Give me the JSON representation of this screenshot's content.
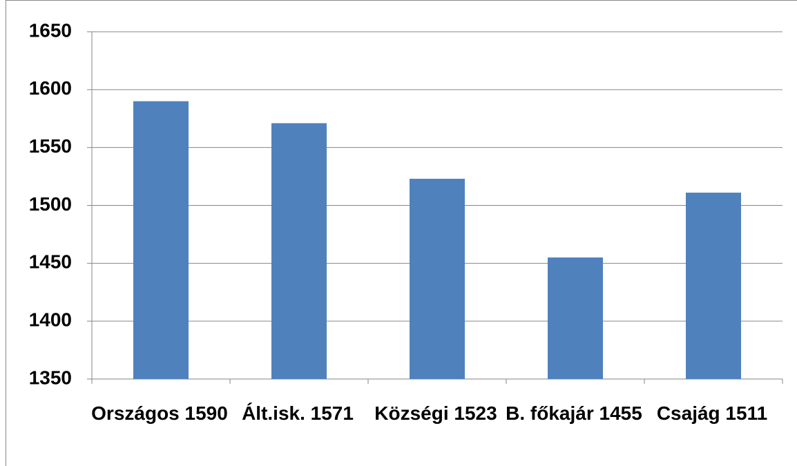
{
  "chart_data": {
    "type": "bar",
    "categories": [
      "Országos 1590",
      "Ált.isk. 1571",
      "Községi 1523",
      "B. főkajár 1455",
      "Csajág 1511"
    ],
    "values": [
      1590,
      1571,
      1523,
      1455,
      1511
    ],
    "color": "#4f81bd",
    "ylim": [
      1350,
      1650
    ],
    "yticks": [
      1350,
      1400,
      1450,
      1500,
      1550,
      1600,
      1650
    ],
    "grid": true
  }
}
